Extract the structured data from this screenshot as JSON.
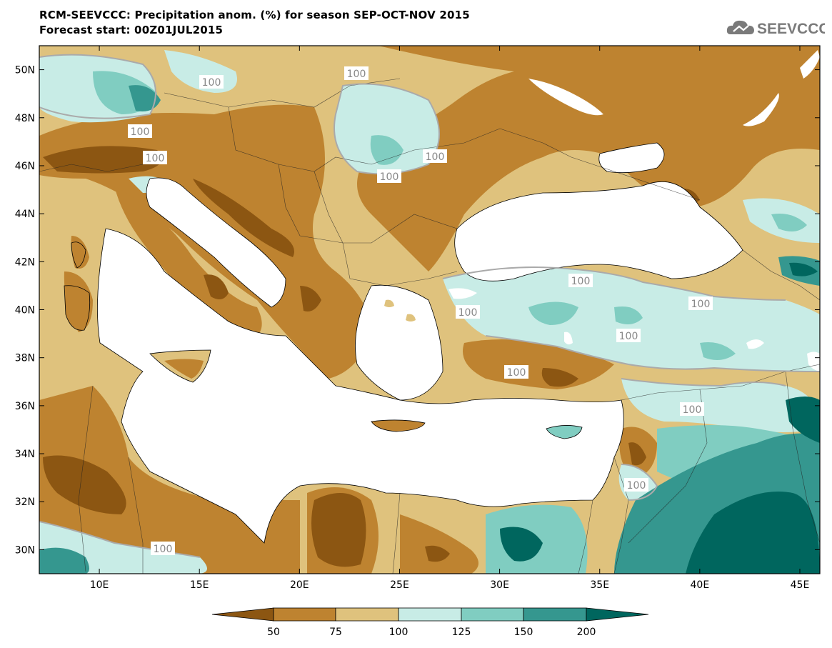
{
  "header": {
    "title": "RCM-SEEVCCC: Precipitation anom. (%) for season SEP-OCT-NOV 2015",
    "subtitle": "Forecast start: 00Z01JUL2015"
  },
  "logo": {
    "text": "SEEVCCC",
    "icon": "cloud-icon"
  },
  "map": {
    "lon_range": [
      7,
      46
    ],
    "lat_range": [
      29,
      51
    ],
    "lat_ticks": [
      "50N",
      "48N",
      "46N",
      "44N",
      "42N",
      "40N",
      "38N",
      "36N",
      "34N",
      "32N",
      "30N"
    ],
    "lon_ticks": [
      "10E",
      "15E",
      "20E",
      "25E",
      "30E",
      "35E",
      "40E",
      "45E"
    ],
    "contour_label": "100"
  },
  "colorbar": {
    "labels": [
      "50",
      "75",
      "100",
      "125",
      "150",
      "200"
    ],
    "colors": {
      "lt50": "#8C5612",
      "c50_75": "#BE8330",
      "c75_100": "#DFC27D",
      "c100_125": "#C8ECE6",
      "c125_150": "#80CDC1",
      "c150_200": "#35978F",
      "gt200": "#00665E"
    }
  }
}
